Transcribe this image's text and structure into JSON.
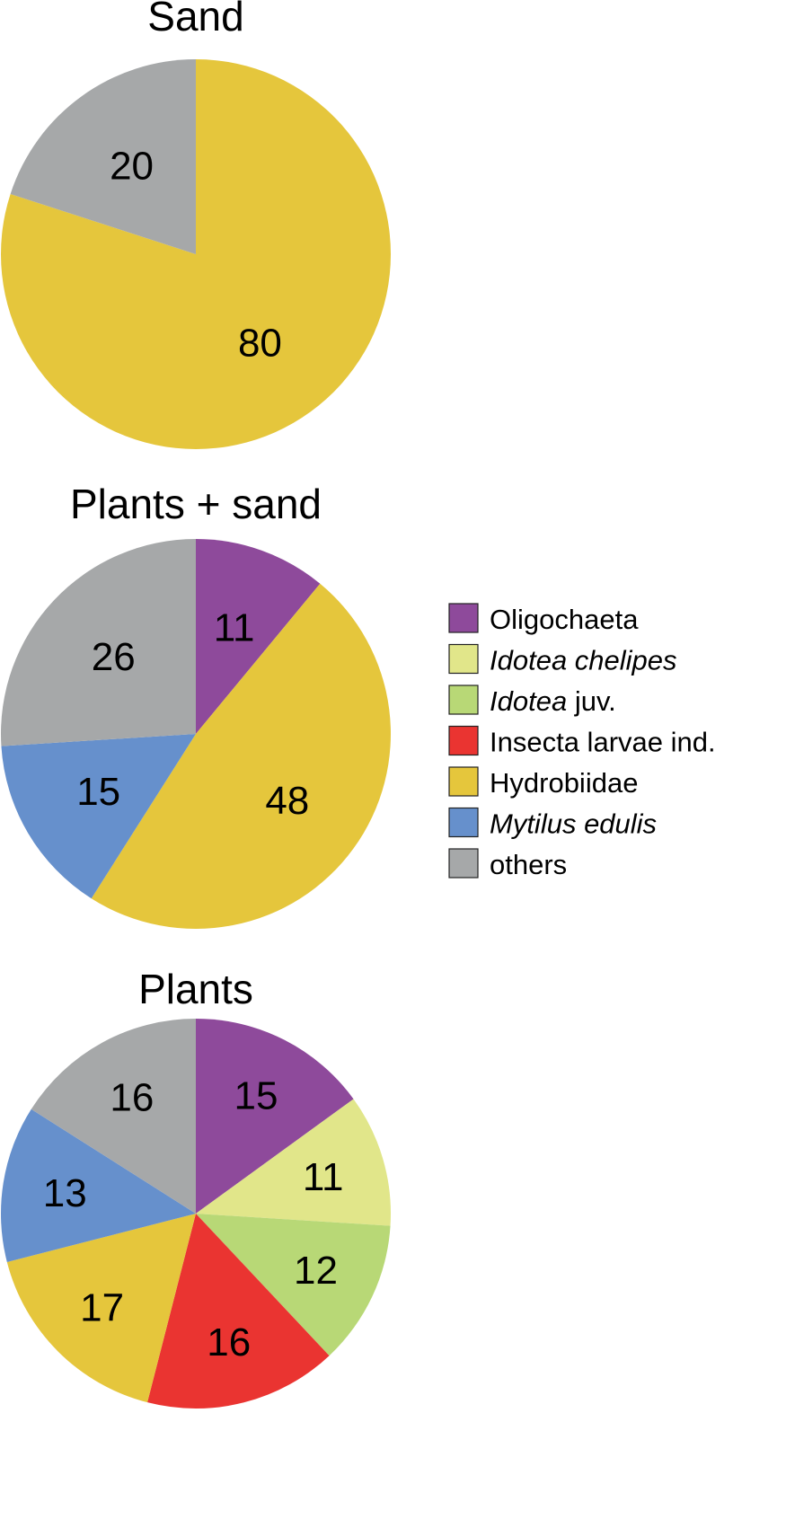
{
  "categories": [
    {
      "key": "oligochaeta",
      "label": "Oligochaeta",
      "italic_part": "",
      "plain_part": "Oligochaeta",
      "color": "#8e4a9b"
    },
    {
      "key": "idotea_chelipes",
      "label": "Idotea chelipes",
      "italic_part": "Idotea chelipes",
      "plain_part": "",
      "color": "#e1e68a"
    },
    {
      "key": "idotea_juv",
      "label": "Idotea juv.",
      "italic_part": "Idotea",
      "plain_part": " juv.",
      "color": "#b8d876"
    },
    {
      "key": "insecta",
      "label": "Insecta larvae ind.",
      "italic_part": "",
      "plain_part": "Insecta larvae ind.",
      "color": "#ea3431"
    },
    {
      "key": "hydrobiidae",
      "label": "Hydrobiidae",
      "italic_part": "",
      "plain_part": "Hydrobiidae",
      "color": "#e5c63c"
    },
    {
      "key": "mytilus",
      "label": "Mytilus edulis",
      "italic_part": "Mytilus edulis",
      "plain_part": "",
      "color": "#6690cc"
    },
    {
      "key": "others",
      "label": "others",
      "italic_part": "",
      "plain_part": "others",
      "color": "#a6a8a9"
    }
  ],
  "chart_data": [
    {
      "type": "pie",
      "title": "Sand",
      "slices": [
        {
          "category": "hydrobiidae",
          "value": 80,
          "label": "80"
        },
        {
          "category": "others",
          "value": 20,
          "label": "20"
        }
      ]
    },
    {
      "type": "pie",
      "title": "Plants + sand",
      "slices": [
        {
          "category": "oligochaeta",
          "value": 11,
          "label": "11"
        },
        {
          "category": "hydrobiidae",
          "value": 48,
          "label": "48"
        },
        {
          "category": "mytilus",
          "value": 15,
          "label": "15"
        },
        {
          "category": "others",
          "value": 26,
          "label": "26"
        }
      ]
    },
    {
      "type": "pie",
      "title": "Plants",
      "slices": [
        {
          "category": "oligochaeta",
          "value": 15,
          "label": "15"
        },
        {
          "category": "idotea_chelipes",
          "value": 11,
          "label": "11"
        },
        {
          "category": "idotea_juv",
          "value": 12,
          "label": "12"
        },
        {
          "category": "insecta",
          "value": 16,
          "label": "16"
        },
        {
          "category": "hydrobiidae",
          "value": 17,
          "label": "17"
        },
        {
          "category": "mytilus",
          "value": 13,
          "label": "13"
        },
        {
          "category": "others",
          "value": 16,
          "label": "16"
        }
      ]
    }
  ],
  "legend": {
    "placement": "right",
    "items": [
      "oligochaeta",
      "idotea_chelipes",
      "idotea_juv",
      "insecta",
      "hydrobiidae",
      "mytilus",
      "others"
    ]
  }
}
